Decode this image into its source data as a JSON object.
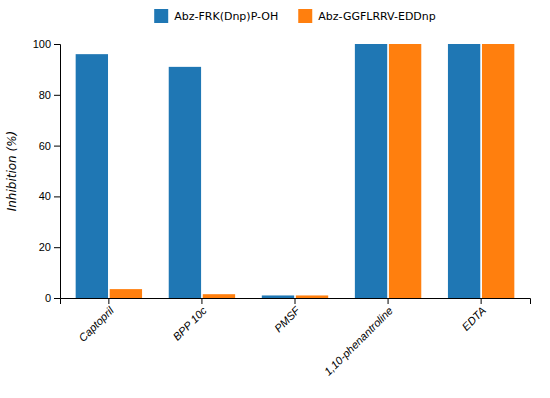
{
  "chart_data": {
    "type": "bar",
    "categories": [
      "Captopril",
      "BPP 10c",
      "PMSF",
      "1,10-phenantroline",
      "EDTA"
    ],
    "series": [
      {
        "name": "Abz-FRK(Dnp)P-OH",
        "values": [
          96,
          91,
          1,
          100,
          100
        ]
      },
      {
        "name": "Abz-GGFLRRV-EDDnp",
        "values": [
          3.5,
          1.5,
          1.0,
          100,
          100
        ]
      }
    ],
    "ylabel": "Inhibition (%)",
    "ylim": [
      0,
      100
    ],
    "yticks": [
      0,
      20,
      40,
      60,
      80,
      100
    ],
    "grid": false,
    "legend": "top"
  }
}
